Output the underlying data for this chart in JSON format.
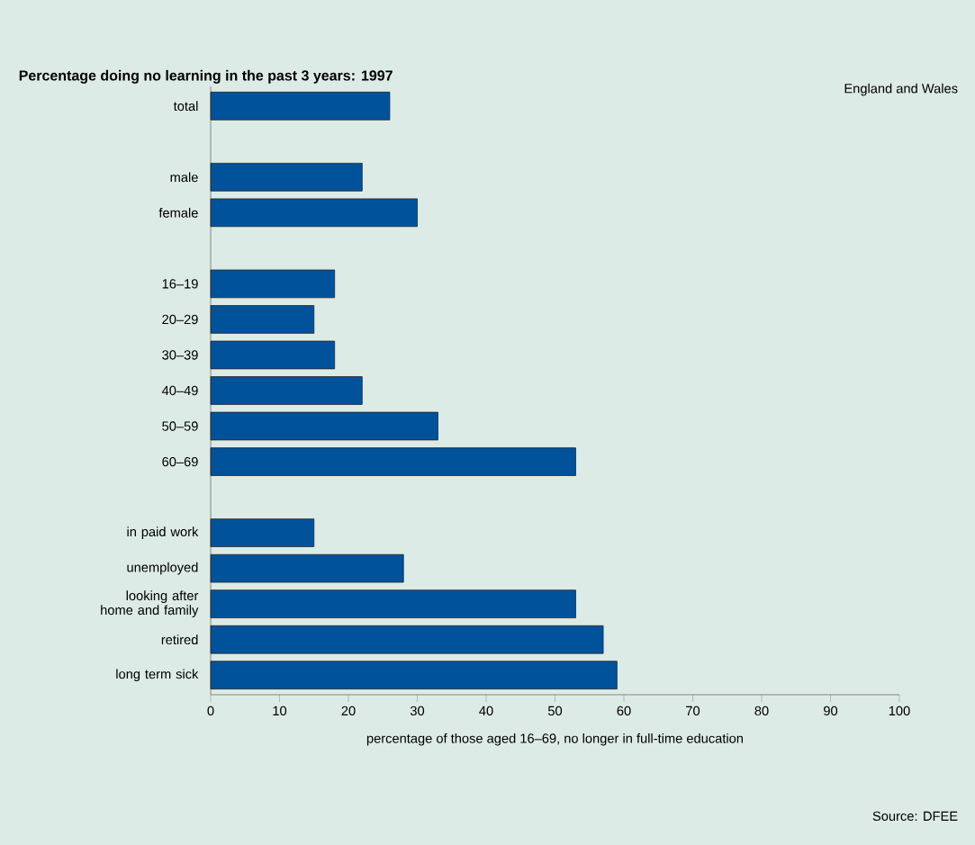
{
  "chart_data": {
    "type": "bar",
    "orientation": "horizontal",
    "title": "Percentage doing no learning in the past 3 years: 1997",
    "xlabel": "percentage of those aged 16–69, no longer in full-time education",
    "annotations": [
      "England and Wales",
      "Source: DFEE"
    ],
    "categories": [
      "total",
      null,
      "male",
      "female",
      null,
      "16–19",
      "20–29",
      "30–39",
      "40–49",
      "50–59",
      "60–69",
      null,
      "in paid work",
      "unemployed",
      "looking after home and family",
      "retired",
      "long term sick"
    ],
    "values": [
      26,
      null,
      22,
      30,
      null,
      18,
      15,
      18,
      22,
      33,
      53,
      null,
      15,
      28,
      53,
      57,
      59
    ],
    "color": "#00529b",
    "xlim": [
      0,
      100
    ],
    "xticks": [
      0,
      10,
      20,
      30,
      40,
      50,
      60,
      70,
      80,
      90,
      100
    ]
  }
}
